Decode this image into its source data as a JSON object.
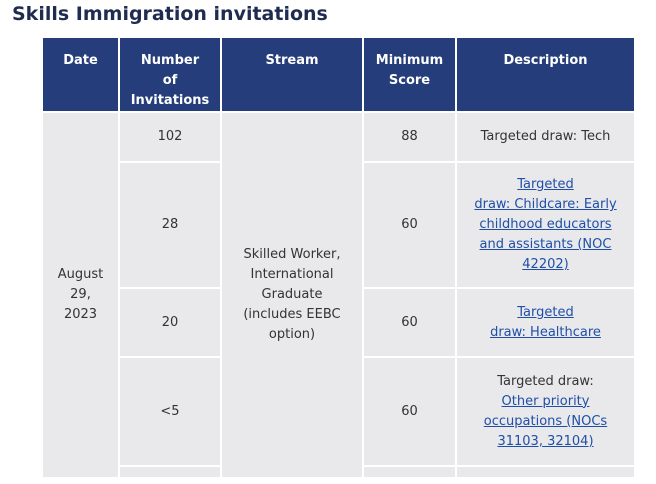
{
  "page": {
    "title": "Skills Immigration invitations"
  },
  "table": {
    "headers": {
      "date": "Date",
      "number_l1": "Number",
      "number_l2": "of",
      "number_l3": "Invitations",
      "stream": "Stream",
      "score_l1": "Minimum",
      "score_l2": "Score",
      "description": "Description"
    },
    "date_l1": "August",
    "date_l2": "29,",
    "date_l3": "2023",
    "stream_l1": "Skilled Worker,",
    "stream_l2": "International",
    "stream_l3": "Graduate",
    "stream_l4": "(includes EEBC",
    "stream_l5": "option)",
    "rows": [
      {
        "invitations": "102",
        "score": "88",
        "desc_l1": "Targeted draw: Tech"
      },
      {
        "invitations": "28",
        "score": "60",
        "desc_l1": "Targeted",
        "desc_l2": "draw: Childcare: Early",
        "desc_l3": "childhood educators",
        "desc_l4": "and assistants (NOC",
        "desc_l5": "42202)"
      },
      {
        "invitations": "20",
        "score": "60",
        "desc_l1": "Targeted",
        "desc_l2": "draw: Healthcare"
      },
      {
        "invitations": "<5",
        "score": "60",
        "desc_l1": "Targeted draw:",
        "desc_l2": "Other priority",
        "desc_l3": "occupations (NOCs",
        "desc_l4": "31103, 32104)"
      }
    ]
  }
}
